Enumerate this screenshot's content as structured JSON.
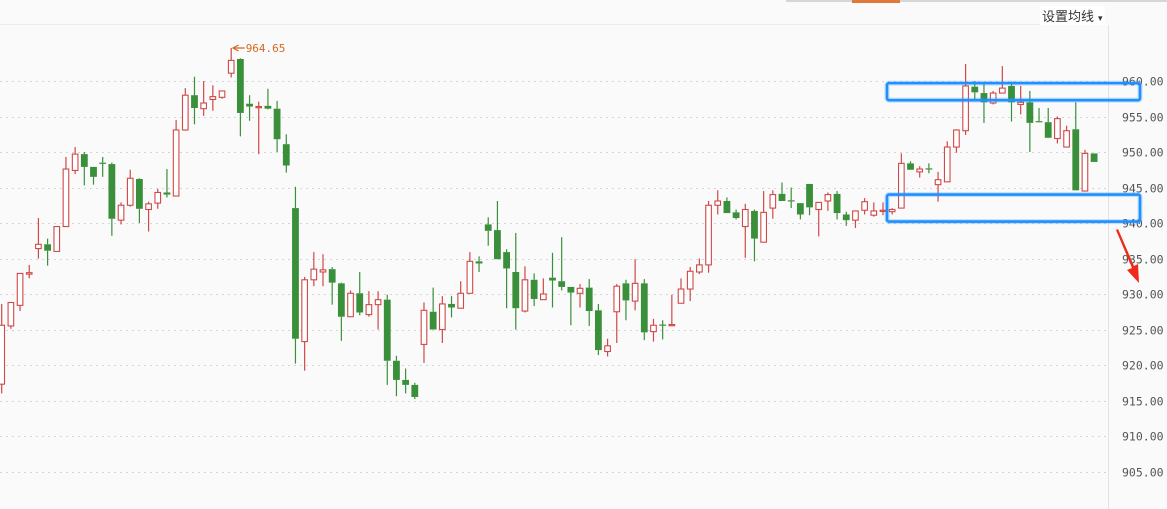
{
  "header": {
    "ma_button_label": "设置均线",
    "ma_caret": "▾"
  },
  "colors": {
    "up": "#d04848",
    "down": "#3a8f3a",
    "highlight_box": "#1e90ff",
    "arrow": "#ee2a1a",
    "max_marker": "#d2691e"
  },
  "chart_data": {
    "type": "candlestick",
    "ylim": [
      902,
      966
    ],
    "yticks": [
      960,
      955,
      950,
      945,
      940,
      935,
      930,
      925,
      920,
      915,
      910,
      905
    ],
    "ytick_labels": [
      "960.00",
      "955.00",
      "950.00",
      "945.00",
      "940.00",
      "935.00",
      "930.00",
      "925.00",
      "920.00",
      "915.00",
      "910.00",
      "905.00"
    ],
    "grid": true,
    "max_marker": {
      "value": 964.65,
      "label": "964.65",
      "candle_index": 25
    },
    "ohlc": [
      [
        917.3,
        928.6,
        916,
        925.6
      ],
      [
        925.5,
        928.8,
        925.1,
        928.8
      ],
      [
        928.4,
        932.9,
        927.6,
        932.9
      ],
      [
        932.8,
        934.1,
        932.2,
        933
      ],
      [
        936.4,
        940.7,
        935,
        937
      ],
      [
        937,
        937.8,
        934,
        936.1
      ],
      [
        936,
        939.5,
        936,
        939.5
      ],
      [
        939.5,
        949.3,
        939.5,
        947.6
      ],
      [
        947.4,
        950.7,
        946.9,
        949.7
      ],
      [
        949.7,
        950,
        945.3,
        947.9
      ],
      [
        947.9,
        947.9,
        945.4,
        946.5
      ],
      [
        948.5,
        949.3,
        946.5,
        948.4
      ],
      [
        948.3,
        948.5,
        938.2,
        940.6
      ],
      [
        940.4,
        942.9,
        939.8,
        942.5
      ],
      [
        942.5,
        947.5,
        942.3,
        946.3
      ],
      [
        946.2,
        946.3,
        940,
        942
      ],
      [
        941.9,
        943,
        938.8,
        942.7
      ],
      [
        942.8,
        944.8,
        942,
        944.3
      ],
      [
        944.3,
        947.6,
        943.6,
        944
      ],
      [
        943.8,
        954.5,
        943.8,
        953.1
      ],
      [
        953.1,
        959,
        953,
        958
      ],
      [
        958,
        960.6,
        953.9,
        956.2
      ],
      [
        956.1,
        960,
        955.1,
        956.9
      ],
      [
        957.4,
        959.4,
        955.8,
        957.8
      ],
      [
        957.7,
        958.6,
        957.5,
        958.6
      ],
      [
        961.1,
        964.65,
        960.5,
        962.9
      ],
      [
        963.1,
        963.2,
        952.2,
        955.5
      ],
      [
        956.8,
        958,
        954.4,
        956.4
      ],
      [
        956.3,
        957.1,
        949.7,
        956.4
      ],
      [
        956.5,
        958.9,
        956,
        956.1
      ],
      [
        956.1,
        957.2,
        950,
        951.8
      ],
      [
        951.1,
        952.5,
        947.1,
        948.1
      ],
      [
        942.1,
        945.1,
        920.2,
        923.7
      ],
      [
        923.3,
        932.4,
        919.2,
        932
      ],
      [
        932,
        935.9,
        931.1,
        933.5
      ],
      [
        933.1,
        935.6,
        931.1,
        933.4
      ],
      [
        933.5,
        933.8,
        928.5,
        931.6
      ],
      [
        931.5,
        931.6,
        923.4,
        926.8
      ],
      [
        926.8,
        930.5,
        926.8,
        930.1
      ],
      [
        930.1,
        933.1,
        927,
        927.4
      ],
      [
        927.1,
        930.4,
        926.8,
        928.5
      ],
      [
        928.5,
        930.4,
        925,
        929.2
      ],
      [
        929.2,
        929.9,
        917.2,
        920.6
      ],
      [
        920.6,
        921.3,
        915.6,
        917.9
      ],
      [
        917.9,
        919.5,
        916,
        917.2
      ],
      [
        917.2,
        917.5,
        915.2,
        915.5
      ],
      [
        922.9,
        928.8,
        920.3,
        927.7
      ],
      [
        927.5,
        930.9,
        925,
        925
      ],
      [
        925,
        929.7,
        923.1,
        928.6
      ],
      [
        928.6,
        929.7,
        926.7,
        928.1
      ],
      [
        928,
        931.8,
        928,
        930.1
      ],
      [
        930.1,
        935.9,
        930.1,
        934.6
      ],
      [
        934.6,
        935.3,
        933.1,
        934.3
      ],
      [
        939.8,
        940.8,
        936.8,
        938.9
      ],
      [
        939,
        943.1,
        934.9,
        934.9
      ],
      [
        935.9,
        936.3,
        928,
        933.6
      ],
      [
        933.1,
        938.6,
        925,
        928
      ],
      [
        927.6,
        933.9,
        927.4,
        932
      ],
      [
        932,
        932.9,
        928.3,
        929.3
      ],
      [
        929.2,
        932.2,
        929.2,
        930
      ],
      [
        932.3,
        935.8,
        928.1,
        931.9
      ],
      [
        931.8,
        938,
        930.5,
        931
      ],
      [
        931,
        931,
        925.6,
        930.2
      ],
      [
        930.1,
        931.4,
        928.1,
        930.8
      ],
      [
        930.9,
        932.1,
        925.5,
        927.6
      ],
      [
        927.7,
        928.6,
        921.4,
        922.1
      ],
      [
        921.9,
        923.7,
        921.2,
        922.7
      ],
      [
        927.5,
        931.4,
        923.1,
        931.1
      ],
      [
        931.5,
        932,
        926.3,
        929.1
      ],
      [
        929,
        934.9,
        927.7,
        931.5
      ],
      [
        931.5,
        932.1,
        923.5,
        924.6
      ],
      [
        924.7,
        926.5,
        923.3,
        925.6
      ],
      [
        925.7,
        926.3,
        923.6,
        925.6
      ],
      [
        925.6,
        929.9,
        925.5,
        925.7
      ],
      [
        928.7,
        932.2,
        928.7,
        930.7
      ],
      [
        930.7,
        933.8,
        929,
        933.2
      ],
      [
        933.1,
        935,
        932.8,
        934.1
      ],
      [
        934.1,
        943.1,
        933,
        942.5
      ],
      [
        942.5,
        944.6,
        941.2,
        943.1
      ],
      [
        943.1,
        943.6,
        941.4,
        941.4
      ],
      [
        941.5,
        941.9,
        940.5,
        940.7
      ],
      [
        939.5,
        942.7,
        935.1,
        941.9
      ],
      [
        941.7,
        941.9,
        934.6,
        937.8
      ],
      [
        937.3,
        944.5,
        937.3,
        941.5
      ],
      [
        942.1,
        944.6,
        940.6,
        944
      ],
      [
        944.1,
        945.7,
        943.1,
        943.1
      ],
      [
        943.2,
        945,
        942.1,
        943.1
      ],
      [
        942.8,
        942.8,
        940.5,
        941.2
      ],
      [
        945.5,
        945.5,
        941.1,
        942.2
      ],
      [
        941.9,
        942.9,
        938.1,
        942.9
      ],
      [
        943.1,
        944.3,
        941.7,
        944
      ],
      [
        944.1,
        944.5,
        940.5,
        941.4
      ],
      [
        941.2,
        941.6,
        939.6,
        940.4
      ],
      [
        940.4,
        941.7,
        939.3,
        941.7
      ],
      [
        941.8,
        943.5,
        941.2,
        943
      ],
      [
        941.1,
        942.9,
        940.9,
        941.7
      ],
      [
        941.8,
        942.9,
        941.1,
        941.8
      ],
      [
        941.6,
        942.1,
        941.2,
        941.9
      ],
      [
        942.1,
        949.8,
        942.1,
        948.4
      ],
      [
        948.4,
        948.7,
        947.5,
        947.5
      ],
      [
        947.2,
        948,
        946.4,
        947.6
      ],
      [
        947.7,
        948.4,
        947,
        947.6
      ],
      [
        945.4,
        947.2,
        943,
        946.1
      ],
      [
        945.8,
        951.5,
        945.8,
        950.7
      ],
      [
        950.7,
        953.2,
        949.9,
        953.1
      ],
      [
        953,
        962.4,
        952.4,
        959.3
      ],
      [
        959.2,
        960,
        957.3,
        958.4
      ],
      [
        958.3,
        959.8,
        954.1,
        957
      ],
      [
        956.9,
        958.6,
        956.7,
        958.3
      ],
      [
        958.3,
        962.1,
        958.3,
        959
      ],
      [
        959.3,
        959.9,
        954.3,
        957
      ],
      [
        956.7,
        959.3,
        955.3,
        957
      ],
      [
        957,
        958.6,
        950,
        954.1
      ],
      [
        954.35,
        956.2,
        954.2,
        954.3
      ],
      [
        954.2,
        956.2,
        952,
        952
      ],
      [
        951.9,
        955,
        951.2,
        954.7
      ],
      [
        950.7,
        953.7,
        950.7,
        953
      ],
      [
        953.2,
        957,
        944.6,
        944.6
      ],
      [
        944.5,
        950.3,
        944.5,
        949.8
      ],
      [
        949.8,
        949.8,
        948.6,
        948.6
      ]
    ],
    "annotations": [
      {
        "type": "highlight-box",
        "price_range": [
          957.3,
          959.7
        ]
      },
      {
        "type": "highlight-box",
        "price_range": [
          940.2,
          944.0
        ]
      },
      {
        "type": "arrow",
        "direction": "down"
      }
    ]
  }
}
